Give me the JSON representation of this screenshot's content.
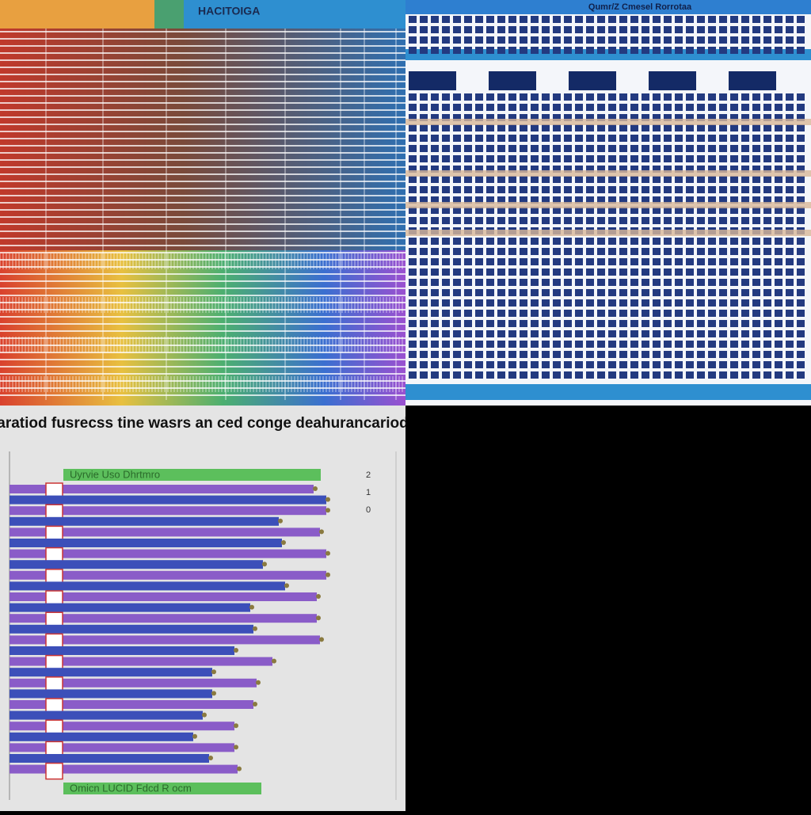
{
  "top_left": {
    "header_title": "HACITOIGA"
  },
  "top_right": {
    "title": "Qumr/Z Cmesel Rorrotaa"
  },
  "bar_panel": {
    "title": "aratiod fusrecss tine wasrs an ced conge deahurancariod",
    "header_label": "Uyrvie Uso Dhrtmro",
    "footer_label": "Omicn LUCID Fdcd R ocm",
    "side_labels": [
      "2",
      "1",
      "0"
    ],
    "colors": [
      "#8a5cc8",
      "#3c4fb9"
    ],
    "values": [
      96,
      100,
      100,
      85,
      98,
      86,
      100,
      80,
      100,
      87,
      97,
      76,
      97,
      77,
      98,
      71,
      83,
      64,
      78,
      64,
      77,
      61,
      71,
      58,
      71,
      63,
      72
    ]
  }
}
